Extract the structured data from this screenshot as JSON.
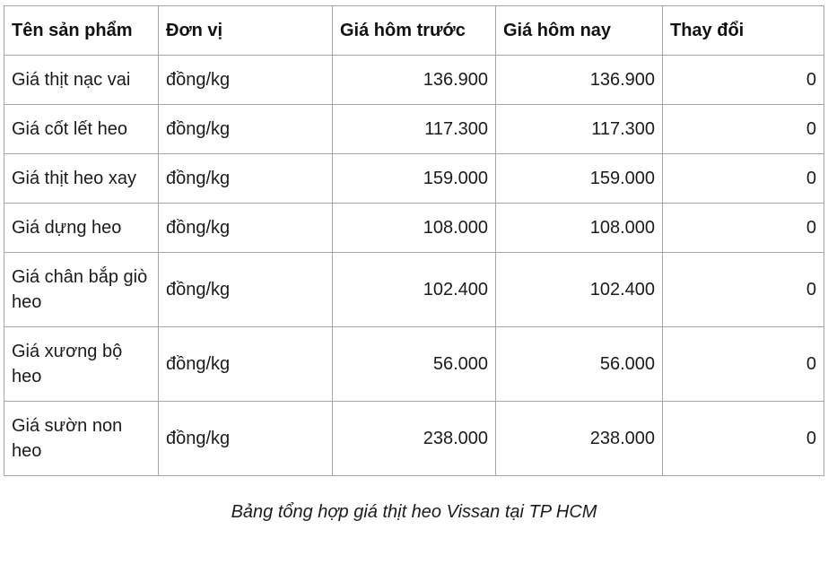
{
  "colors": {
    "background": "#ffffff",
    "border": "#a6a6a6",
    "text": "#1b1b1b"
  },
  "table": {
    "headers": [
      "Tên sản phẩm",
      "Đơn vị",
      "Giá hôm trước",
      "Giá hôm nay",
      "Thay đổi"
    ],
    "rows": [
      {
        "name": "Giá thịt nạc vai",
        "unit": "đồng/kg",
        "prev": "136.900",
        "today": "136.900",
        "change": "0"
      },
      {
        "name": "Giá cốt lết heo",
        "unit": "đồng/kg",
        "prev": "117.300",
        "today": "117.300",
        "change": "0"
      },
      {
        "name": "Giá thịt heo xay",
        "unit": "đồng/kg",
        "prev": "159.000",
        "today": "159.000",
        "change": "0"
      },
      {
        "name": "Giá dựng heo",
        "unit": "đồng/kg",
        "prev": "108.000",
        "today": "108.000",
        "change": "0"
      },
      {
        "name": "Giá chân bắp giò heo",
        "unit": "đồng/kg",
        "prev": "102.400",
        "today": "102.400",
        "change": "0"
      },
      {
        "name": "Giá xương bộ heo",
        "unit": "đồng/kg",
        "prev": "56.000",
        "today": "56.000",
        "change": "0"
      },
      {
        "name": "Giá sườn non heo",
        "unit": "đồng/kg",
        "prev": "238.000",
        "today": "238.000",
        "change": "0"
      }
    ]
  },
  "caption": "Bảng tổng hợp giá thịt heo Vissan tại TP HCM",
  "chart_data": {
    "type": "table",
    "title": "Bảng tổng hợp giá thịt heo Vissan tại TP HCM",
    "columns": [
      "Tên sản phẩm",
      "Đơn vị",
      "Giá hôm trước",
      "Giá hôm nay",
      "Thay đổi"
    ],
    "rows": [
      [
        "Giá thịt nạc vai",
        "đồng/kg",
        136900,
        136900,
        0
      ],
      [
        "Giá cốt lết heo",
        "đồng/kg",
        117300,
        117300,
        0
      ],
      [
        "Giá thịt heo xay",
        "đồng/kg",
        159000,
        159000,
        0
      ],
      [
        "Giá dựng heo",
        "đồng/kg",
        108000,
        108000,
        0
      ],
      [
        "Giá chân bắp giò heo",
        "đồng/kg",
        102400,
        102400,
        0
      ],
      [
        "Giá xương bộ heo",
        "đồng/kg",
        56000,
        56000,
        0
      ],
      [
        "Giá sườn non heo",
        "đồng/kg",
        238000,
        238000,
        0
      ]
    ],
    "number_format": "vi-VN thousands separated by dot",
    "unit": "đồng/kg"
  }
}
